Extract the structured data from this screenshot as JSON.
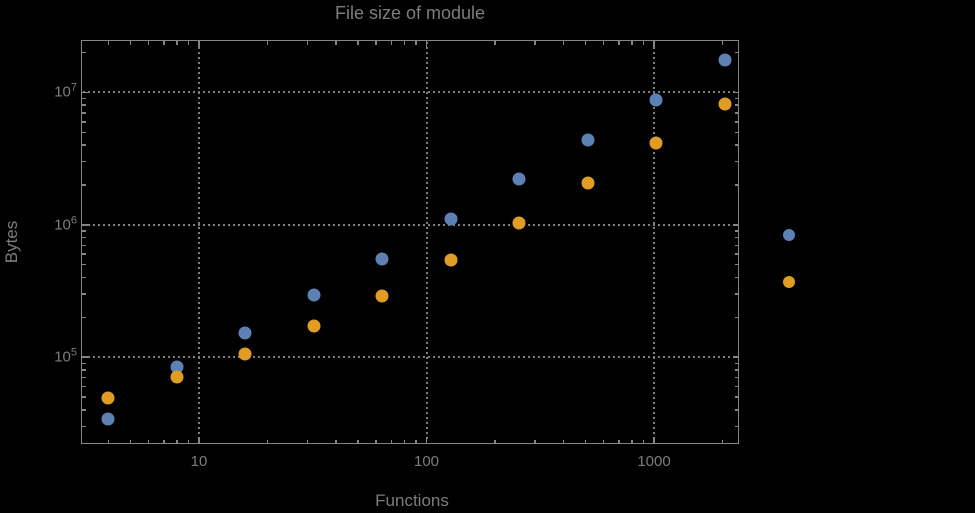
{
  "figure": {
    "title": "File size of module",
    "x_axis": {
      "label": "Functions",
      "ticks": [
        {
          "label": "10",
          "value": 10
        },
        {
          "label": "100",
          "value": 100
        },
        {
          "label": "1000",
          "value": 1000
        }
      ]
    },
    "y_axis": {
      "label": "Bytes",
      "ticks": [
        {
          "base": "10",
          "exp": "5",
          "value": 100000
        },
        {
          "base": "10",
          "exp": "6",
          "value": 1000000
        },
        {
          "base": "10",
          "exp": "7",
          "value": 10000000
        }
      ]
    }
  },
  "colors": {
    "background": "#000000",
    "frame": "#858585",
    "grid": "#7e7e7e",
    "text": "#7d7d7d",
    "series_blue": "#5e81b5",
    "series_orange": "#e19c24"
  },
  "legend": {
    "markers": [
      {
        "series": "series-1",
        "color": "#5e81b5"
      },
      {
        "series": "series-2",
        "color": "#e19c24"
      }
    ]
  },
  "chart_data": {
    "type": "scatter",
    "title": "File size of module",
    "xlabel": "Functions",
    "ylabel": "Bytes",
    "x_scale": "log",
    "y_scale": "log",
    "xlim": [
      3,
      2375
    ],
    "ylim": [
      22000,
      24700000
    ],
    "x_ticks": [
      10,
      100,
      1000
    ],
    "y_ticks": [
      100000,
      1000000,
      10000000
    ],
    "grid": true,
    "x": [
      4,
      8,
      16,
      32,
      64,
      128,
      256,
      512,
      1024,
      2048
    ],
    "series": [
      {
        "name": "series-1-blue",
        "color": "#5e81b5",
        "values": [
          34000,
          84000,
          152000,
          293000,
          550000,
          1110000,
          2220000,
          4400000,
          8800000,
          17600000
        ]
      },
      {
        "name": "series-2-orange",
        "color": "#e19c24",
        "values": [
          49000,
          71000,
          105000,
          171000,
          289000,
          545000,
          1040000,
          2080000,
          4160000,
          8200000
        ]
      }
    ],
    "legend_position": "right",
    "legend_labels_visible": false
  }
}
